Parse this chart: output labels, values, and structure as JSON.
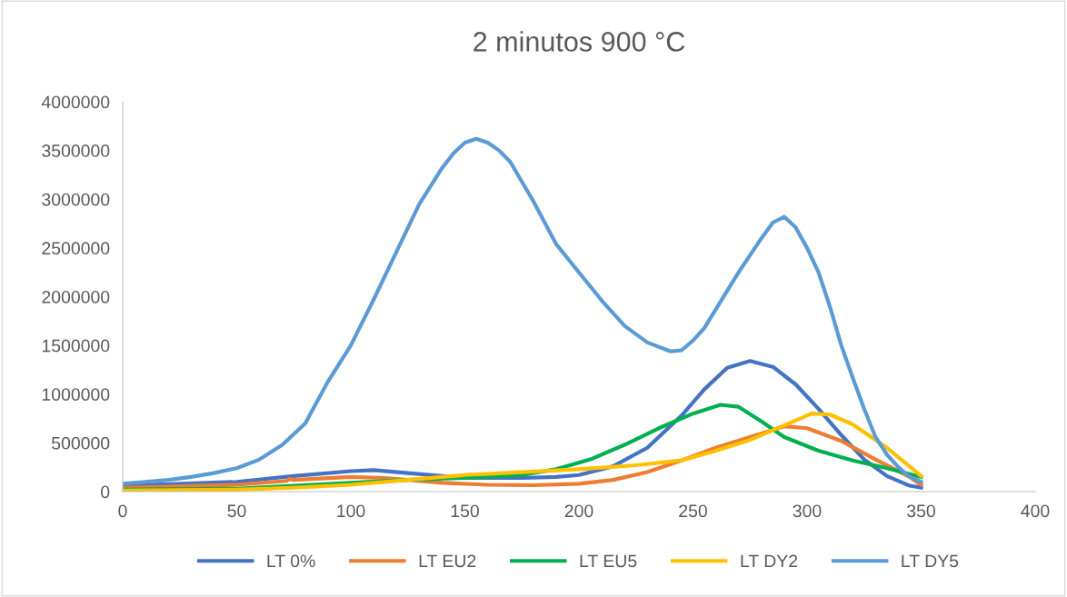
{
  "chart_data": {
    "type": "line",
    "title": "2 minutos 900 °C",
    "xlim": [
      0,
      400
    ],
    "xticks": [
      0,
      50,
      100,
      150,
      200,
      250,
      300,
      350,
      400
    ],
    "ylim": [
      0,
      4000000
    ],
    "yticks": [
      0,
      500000,
      1000000,
      1500000,
      2000000,
      2500000,
      3000000,
      3500000,
      4000000
    ],
    "grid": false,
    "legend": "bottom",
    "marker": "none",
    "line_style": "solid",
    "series": [
      {
        "name": "LT 0%",
        "color": "#4472c4",
        "x": [
          0,
          50,
          75,
          100,
          110,
          125,
          150,
          175,
          190,
          200,
          215,
          230,
          245,
          255,
          265,
          275,
          285,
          295,
          305,
          315,
          325,
          335,
          345,
          350
        ],
        "values": [
          60000,
          100000,
          160000,
          210000,
          220000,
          190000,
          140000,
          140000,
          150000,
          170000,
          260000,
          450000,
          780000,
          1050000,
          1270000,
          1340000,
          1280000,
          1100000,
          850000,
          580000,
          330000,
          160000,
          60000,
          40000
        ]
      },
      {
        "name": "LT EU2",
        "color": "#ed7d31",
        "x": [
          0,
          50,
          72,
          73,
          75,
          100,
          115,
          140,
          160,
          180,
          200,
          215,
          230,
          245,
          260,
          275,
          290,
          300,
          315,
          330,
          345,
          350
        ],
        "values": [
          40000,
          70000,
          110000,
          130000,
          120000,
          150000,
          140000,
          90000,
          70000,
          65000,
          80000,
          120000,
          200000,
          320000,
          450000,
          560000,
          670000,
          650000,
          520000,
          330000,
          150000,
          70000
        ]
      },
      {
        "name": "LT EU5",
        "color": "#00b050",
        "x": [
          0,
          50,
          75,
          100,
          125,
          150,
          175,
          190,
          205,
          220,
          235,
          250,
          262,
          270,
          280,
          290,
          305,
          320,
          335,
          350
        ],
        "values": [
          20000,
          30000,
          60000,
          90000,
          120000,
          140000,
          170000,
          230000,
          330000,
          480000,
          650000,
          800000,
          890000,
          870000,
          720000,
          560000,
          420000,
          320000,
          240000,
          150000
        ]
      },
      {
        "name": "LT DY2",
        "color": "#ffc000",
        "x": [
          0,
          50,
          75,
          100,
          125,
          150,
          175,
          200,
          225,
          245,
          260,
          275,
          290,
          302,
          310,
          320,
          335,
          350
        ],
        "values": [
          10000,
          20000,
          40000,
          70000,
          120000,
          170000,
          200000,
          230000,
          270000,
          320000,
          420000,
          530000,
          680000,
          800000,
          790000,
          690000,
          450000,
          160000
        ]
      },
      {
        "name": "LT DY5",
        "color": "#5b9bd5",
        "x": [
          0,
          10,
          20,
          30,
          40,
          50,
          60,
          70,
          80,
          90,
          100,
          110,
          120,
          130,
          140,
          145,
          150,
          155,
          160,
          165,
          170,
          175,
          180,
          185,
          190,
          200,
          210,
          220,
          230,
          240,
          245,
          250,
          255,
          260,
          270,
          280,
          285,
          290,
          295,
          300,
          305,
          310,
          315,
          320,
          325,
          330,
          335,
          340,
          345,
          350
        ],
        "values": [
          80000,
          100000,
          120000,
          150000,
          190000,
          240000,
          330000,
          480000,
          700000,
          1130000,
          1500000,
          1970000,
          2460000,
          2950000,
          3320000,
          3470000,
          3580000,
          3620000,
          3580000,
          3500000,
          3380000,
          3180000,
          2980000,
          2760000,
          2540000,
          2250000,
          1960000,
          1700000,
          1530000,
          1440000,
          1450000,
          1550000,
          1680000,
          1870000,
          2250000,
          2600000,
          2760000,
          2820000,
          2710000,
          2500000,
          2250000,
          1900000,
          1500000,
          1170000,
          850000,
          560000,
          380000,
          250000,
          150000,
          100000
        ]
      }
    ]
  }
}
